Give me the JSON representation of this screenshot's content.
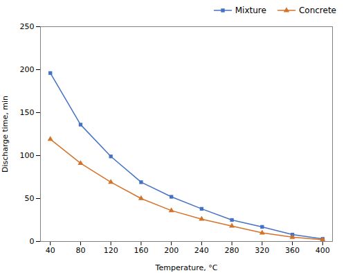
{
  "chart_data": {
    "type": "line",
    "x": [
      40,
      80,
      120,
      160,
      200,
      240,
      280,
      320,
      360,
      400
    ],
    "series": [
      {
        "name": "Mixture",
        "color": "#4472C4",
        "marker": "square",
        "values": [
          196,
          136,
          99,
          69,
          52,
          38,
          25,
          17,
          8,
          3
        ]
      },
      {
        "name": "Concrete",
        "color": "#D4722A",
        "marker": "triangle",
        "values": [
          119,
          91,
          69,
          50,
          36,
          26,
          18,
          10,
          5,
          2
        ]
      }
    ],
    "xlabel": "Temperature, °C",
    "ylabel": "Discharge time, min",
    "xlim": [
      27,
      413
    ],
    "ylim": [
      0,
      250
    ],
    "xticks": [
      40,
      80,
      120,
      160,
      200,
      240,
      280,
      320,
      360,
      400
    ],
    "yticks": [
      0,
      50,
      100,
      150,
      200,
      250
    ],
    "grid": false,
    "legend": "upper right"
  }
}
